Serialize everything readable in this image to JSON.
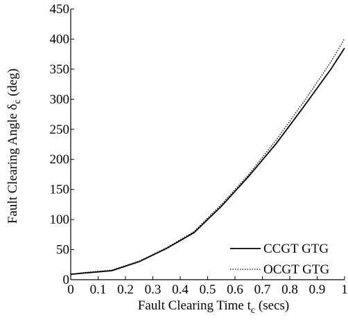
{
  "chart_data": {
    "type": "line",
    "xlabel": "Fault Clearing Time t",
    "xlabel_sub": "c",
    "xlabel_unit": " (secs)",
    "ylabel": "Fault Clearing Angle δ",
    "ylabel_sub": "c",
    "ylabel_unit": " (deg)",
    "xlim": [
      0,
      1
    ],
    "ylim": [
      0,
      450
    ],
    "x_ticks": [
      0,
      0.1,
      0.2,
      0.3,
      0.4,
      0.5,
      0.6,
      0.7,
      0.8,
      0.9,
      1
    ],
    "x_tick_labels": [
      "0",
      "0.1",
      "0.2",
      "0.3",
      "0.4",
      "0.5",
      "0.6",
      "0.7",
      "0.8",
      "0.9",
      "1"
    ],
    "y_ticks": [
      0,
      50,
      100,
      150,
      200,
      250,
      300,
      350,
      400,
      450
    ],
    "y_tick_labels": [
      "0",
      "50",
      "100",
      "150",
      "200",
      "250",
      "300",
      "350",
      "400",
      "450"
    ],
    "grid": false,
    "legend_position": "bottom-right",
    "series": [
      {
        "name": "CCGT GTG",
        "style": "solid",
        "color": "#000000",
        "x": [
          0,
          0.05,
          0.15,
          0.25,
          0.35,
          0.45,
          0.55,
          0.65,
          0.75,
          0.85,
          0.95,
          1.0
        ],
        "y": [
          9,
          11,
          15,
          30,
          52,
          78,
          122,
          172,
          226,
          287,
          350,
          385
        ]
      },
      {
        "name": "OCGT GTG",
        "style": "dotted",
        "color": "#000000",
        "x": [
          0,
          0.05,
          0.15,
          0.25,
          0.35,
          0.45,
          0.55,
          0.65,
          0.75,
          0.85,
          0.95,
          1.0
        ],
        "y": [
          9,
          12,
          16,
          31,
          53,
          80,
          125,
          175,
          232,
          295,
          362,
          401
        ]
      }
    ]
  }
}
